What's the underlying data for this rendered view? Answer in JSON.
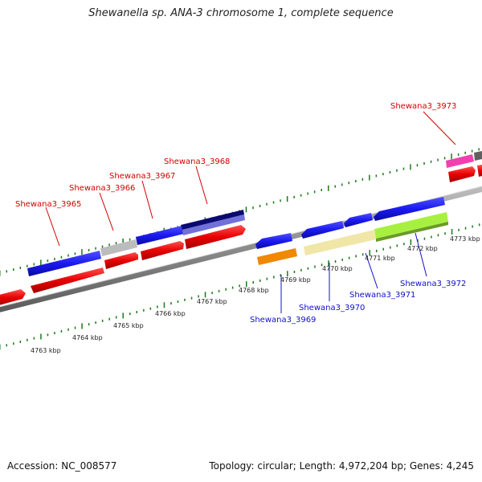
{
  "title": "Shewanella sp. ANA-3 chromosome 1, complete sequence",
  "footer": {
    "accession": "Accession: NC_008577",
    "summary": "Topology: circular; Length: 4,972,204 bp; Genes: 4,245"
  },
  "scale_labels": [
    "4763 kbp",
    "4764 kbp",
    "4765 kbp",
    "4766 kbp",
    "4767 kbp",
    "4768 kbp",
    "4769 kbp",
    "4770 kbp",
    "4771 kbp",
    "4772 kbp",
    "4773 kbp"
  ],
  "forward_gene_labels": [
    "Shewana3_3965",
    "Shewana3_3966",
    "Shewana3_3967",
    "Shewana3_3968",
    "Shewana3_3973"
  ],
  "reverse_gene_labels": [
    "Shewana3_3969",
    "Shewana3_3970",
    "Shewana3_3971",
    "Shewana3_3972"
  ],
  "colors": {
    "backbone": "#8a8a8a",
    "cds": "#e80000",
    "blue_gene": "#1a1af0",
    "navy_gene": "#0a0a70",
    "light_blue_gene": "#7070d8",
    "grey_gene": "#bcbcbc",
    "orange_gene": "#f08800",
    "khaki_gene": "#f0e6a8",
    "lime_gene": "#a8f040",
    "pink_gene": "#f040b0",
    "dark_grey_gene": "#606060",
    "tick": "#1a7a1a",
    "forward_label": "#d40000",
    "reverse_label": "#1010c8"
  }
}
